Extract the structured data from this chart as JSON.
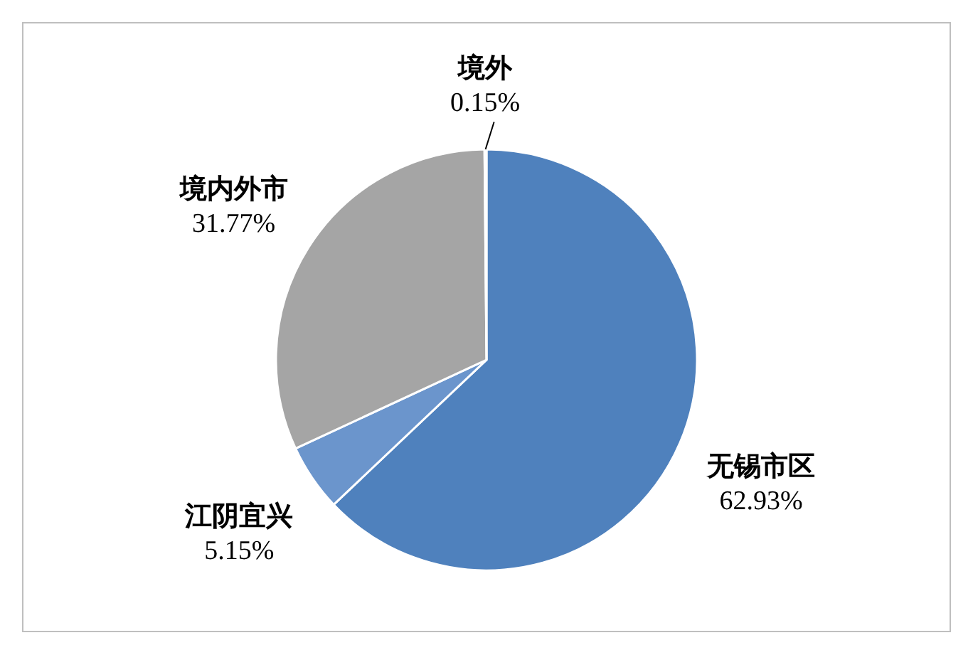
{
  "chart_data": {
    "type": "pie",
    "categories": [
      "无锡市区",
      "江阴宜兴",
      "境内外市",
      "境外"
    ],
    "values": [
      62.93,
      5.15,
      31.77,
      0.15
    ],
    "colors": [
      "#4f81bd",
      "#6b95cc",
      "#a5a5a5",
      "#4a7ab8"
    ],
    "value_labels": [
      "62.93%",
      "5.15%",
      "31.77%",
      "0.15%"
    ]
  }
}
